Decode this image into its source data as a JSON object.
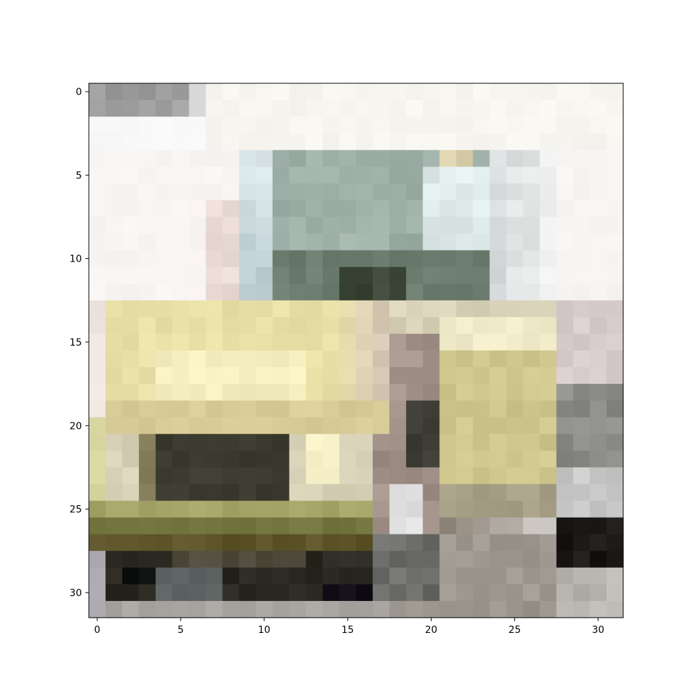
{
  "figure": {
    "x_ticks": [
      "0",
      "5",
      "10",
      "15",
      "20",
      "25",
      "30"
    ],
    "y_ticks": [
      "0",
      "5",
      "10",
      "15",
      "20",
      "25",
      "30"
    ]
  },
  "image": {
    "rows": 32,
    "cols": 32,
    "description_colors": {
      "sky": "#f8f7f6",
      "cab_glass": "#9fb0a8",
      "body_cream": "#e4dca8",
      "body_yellow": "#cfc48a",
      "shadow_dark": "#3a3a2e",
      "wheel_black": "#15130f",
      "ground_grey": "#a8a4a0"
    }
  }
}
